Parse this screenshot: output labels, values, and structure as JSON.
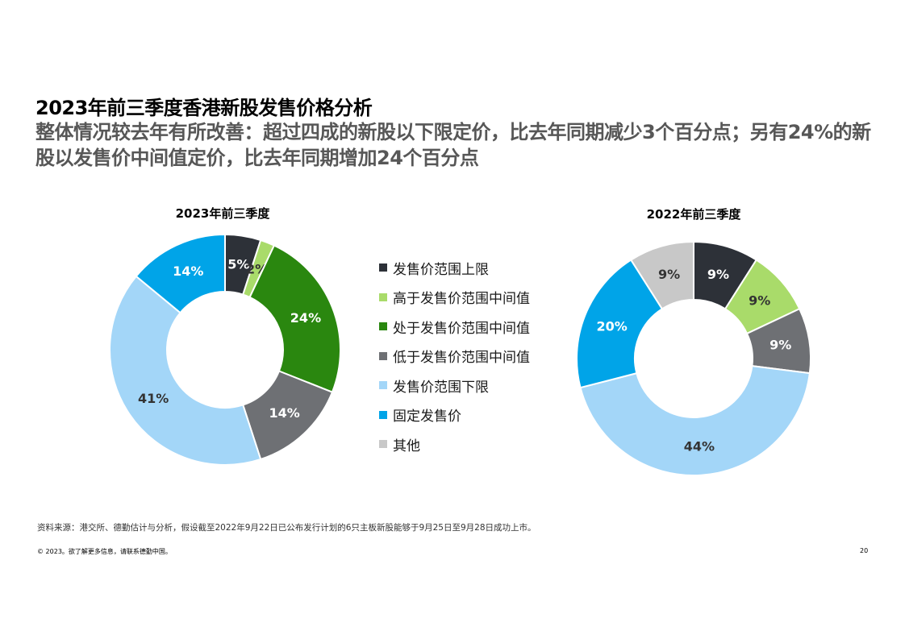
{
  "title": "2023年前三季度香港新股发售价格分析",
  "subtitle": "整体情况较去年有所改善：超过四成的新股以下限定价，比去年同期减少3个百分点；另有24%的新股以发售价中间值定价，比去年同期增加24个百分点",
  "legend": [
    {
      "label": "发售价范围上限",
      "color": "#2d3138"
    },
    {
      "label": "高于发售价范围中间值",
      "color": "#a9db6a"
    },
    {
      "label": "处于发售价范围中间值",
      "color": "#2a870f"
    },
    {
      "label": "低于发售价范围中间值",
      "color": "#6e7074"
    },
    {
      "label": "发售价范围下限",
      "color": "#a3d6f8"
    },
    {
      "label": "固定发售价",
      "color": "#00a4e8"
    },
    {
      "label": "其他",
      "color": "#c8c8c8"
    }
  ],
  "chart_data": [
    {
      "type": "pie",
      "title": "2023年前三季度",
      "categories": [
        "发售价范围上限",
        "高于发售价范围中间值",
        "处于发售价范围中间值",
        "低于发售价范围中间值",
        "发售价范围下限",
        "固定发售价",
        "其他"
      ],
      "values": [
        5,
        2,
        24,
        14,
        41,
        14,
        0
      ],
      "value_labels": [
        "5%",
        "2%",
        "24%",
        "14%",
        "41%",
        "14%",
        ""
      ],
      "style": "donut"
    },
    {
      "type": "pie",
      "title": "2022年前三季度",
      "categories": [
        "发售价范围上限",
        "高于发售价范围中间值",
        "处于发售价范围中间值",
        "低于发售价范围中间值",
        "发售价范围下限",
        "固定发售价",
        "其他"
      ],
      "values": [
        9,
        9,
        0,
        9,
        44,
        20,
        9
      ],
      "value_labels": [
        "9%",
        "9%",
        "",
        "9%",
        "44%",
        "20%",
        "9%"
      ],
      "style": "donut"
    }
  ],
  "footer": {
    "source": "资料来源：港交所、德勤估计与分析，假设截至2022年9月22日已公布发行计划的6只主板新股能够于9月25日至9月28日成功上市。",
    "copyright": "© 2023。欲了解更多信息，请联系德勤中国。",
    "page": "20"
  }
}
